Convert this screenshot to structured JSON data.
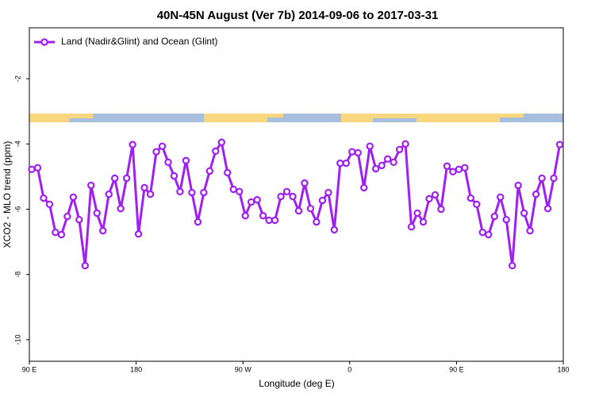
{
  "chart_data": {
    "type": "line",
    "title": "40N-45N August (Ver 7b)   2014-09-06 to 2017-03-31",
    "x_label": "Longitude (deg E)",
    "y_label": "XCO2 - MLO trend (ppm)",
    "xlim": [
      90,
      540
    ],
    "ylim": [
      -10.66,
      -0.44
    ],
    "xticks": [
      {
        "value": 90,
        "label": "90 E"
      },
      180,
      {
        "value": 270,
        "label": "90 W"
      },
      {
        "value": 360,
        "label": "0"
      },
      {
        "value": 450,
        "label": "90 E"
      },
      {
        "value": 540,
        "label": "180"
      }
    ],
    "yticks": [
      -2,
      -4,
      -6,
      -8,
      -10
    ],
    "legend": "top-left",
    "x": [
      92,
      97,
      102,
      107,
      112,
      117,
      122,
      127,
      132,
      137,
      142,
      147,
      152,
      157,
      162,
      167,
      172,
      177,
      182,
      187,
      192,
      197,
      202,
      207,
      212,
      217,
      222,
      227,
      232,
      237,
      242,
      247,
      252,
      257,
      262,
      267,
      272,
      277,
      282,
      287,
      292,
      297,
      302,
      307,
      312,
      317,
      322,
      327,
      332,
      337,
      342,
      347,
      352,
      357,
      362,
      367,
      372,
      377,
      382,
      387,
      392,
      397,
      402,
      407,
      412,
      417,
      422,
      427,
      432,
      437,
      442,
      447,
      452,
      457,
      462,
      467,
      472,
      477,
      482,
      487,
      492,
      497,
      502,
      507,
      512,
      517,
      522,
      527,
      532,
      537
    ],
    "series": [
      {
        "name": "Land (Nadir&Glint) and Ocean (Glint)",
        "color": "#a020f0",
        "values": [
          -4.78,
          -4.73,
          -5.66,
          -5.85,
          -6.71,
          -6.78,
          -6.22,
          -5.63,
          -6.32,
          -7.73,
          -5.27,
          -6.12,
          -6.66,
          -5.54,
          -5.05,
          -5.98,
          -5.05,
          -4.02,
          -6.76,
          -5.34,
          -5.54,
          -4.24,
          -4.07,
          -4.56,
          -4.98,
          -5.46,
          -4.51,
          -5.49,
          -6.39,
          -5.49,
          -4.83,
          -4.22,
          -3.95,
          -4.88,
          -5.39,
          -5.46,
          -6.2,
          -5.78,
          -5.71,
          -6.2,
          -6.34,
          -6.34,
          -5.61,
          -5.46,
          -5.61,
          -6.05,
          -5.2,
          -5.98,
          -6.39,
          -5.73,
          -5.49,
          -6.63,
          -4.59,
          -4.59,
          -4.24,
          -4.27,
          -5.34,
          -4.07,
          -4.76,
          -4.66,
          -4.46,
          -4.56,
          -4.17,
          -4.0,
          -6.54,
          -6.12,
          -6.39,
          -5.68,
          -5.56,
          -6.0,
          -4.68,
          -4.85,
          -4.78,
          -4.73,
          -5.66,
          -5.85,
          -6.71,
          -6.78,
          -6.22,
          -5.63,
          -6.32,
          -7.73,
          -5.27,
          -6.12,
          -6.66,
          -5.54,
          -5.05,
          -5.98,
          -5.05,
          -4.02
        ]
      }
    ]
  }
}
